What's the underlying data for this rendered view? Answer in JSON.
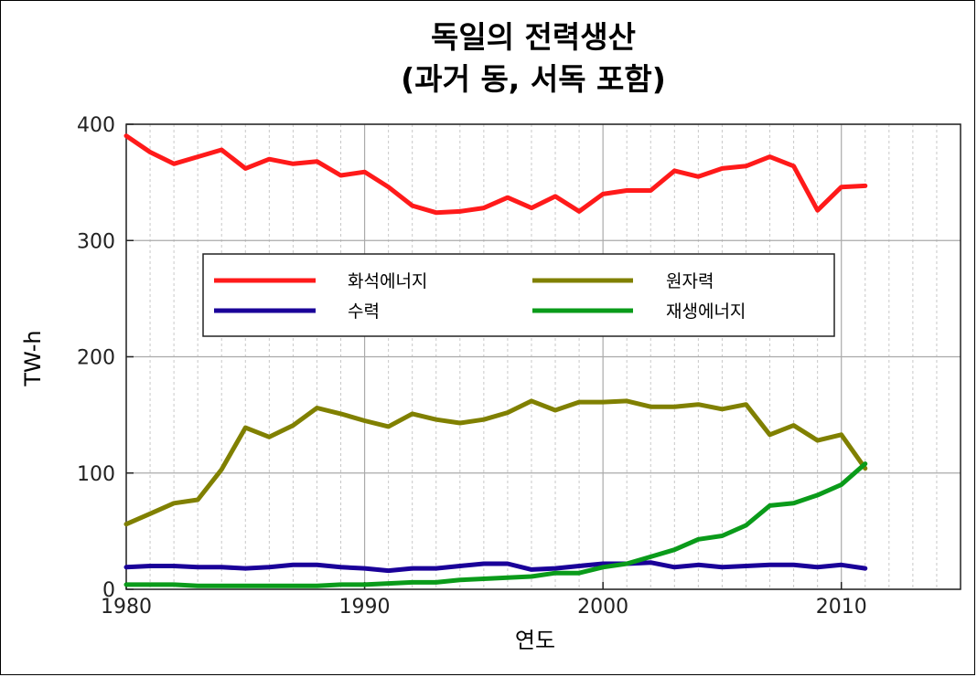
{
  "chart_data": {
    "type": "line",
    "title_line1": "독일의 전력생산",
    "title_line2": "(과거 동, 서독 포함)",
    "xlabel": "연도",
    "ylabel": "TW-h",
    "xlim": [
      1980,
      2015
    ],
    "ylim": [
      0,
      400
    ],
    "xticks": [
      1980,
      1990,
      2000,
      2010
    ],
    "yticks": [
      0,
      100,
      200,
      300,
      400
    ],
    "grid": "dashed minor vertical lines each year; solid major lines",
    "legend_position": "center, inside plot",
    "series": [
      {
        "name": "화석에너지",
        "color": "#ff1a1a",
        "x": [
          1980,
          1981,
          1982,
          1983,
          1984,
          1985,
          1986,
          1987,
          1988,
          1989,
          1990,
          1991,
          1992,
          1993,
          1994,
          1995,
          1996,
          1997,
          1998,
          1999,
          2000,
          2001,
          2002,
          2003,
          2004,
          2005,
          2006,
          2007,
          2008,
          2009,
          2010,
          2011
        ],
        "y": [
          390,
          376,
          366,
          372,
          378,
          362,
          370,
          366,
          368,
          356,
          359,
          346,
          330,
          324,
          325,
          328,
          337,
          328,
          338,
          325,
          340,
          343,
          343,
          360,
          355,
          362,
          364,
          372,
          364,
          326,
          346,
          347
        ]
      },
      {
        "name": "원자력",
        "color": "#808000",
        "x": [
          1980,
          1981,
          1982,
          1983,
          1984,
          1985,
          1986,
          1987,
          1988,
          1989,
          1990,
          1991,
          1992,
          1993,
          1994,
          1995,
          1996,
          1997,
          1998,
          1999,
          2000,
          2001,
          2002,
          2003,
          2004,
          2005,
          2006,
          2007,
          2008,
          2009,
          2010,
          2011
        ],
        "y": [
          56,
          65,
          74,
          77,
          103,
          139,
          131,
          141,
          156,
          151,
          145,
          140,
          151,
          146,
          143,
          146,
          152,
          162,
          154,
          161,
          161,
          162,
          157,
          157,
          159,
          155,
          159,
          133,
          141,
          128,
          133,
          104
        ]
      },
      {
        "name": "수력",
        "color": "#1a0099",
        "x": [
          1980,
          1981,
          1982,
          1983,
          1984,
          1985,
          1986,
          1987,
          1988,
          1989,
          1990,
          1991,
          1992,
          1993,
          1994,
          1995,
          1996,
          1997,
          1998,
          1999,
          2000,
          2001,
          2002,
          2003,
          2004,
          2005,
          2006,
          2007,
          2008,
          2009,
          2010,
          2011
        ],
        "y": [
          19,
          20,
          20,
          19,
          19,
          18,
          19,
          21,
          21,
          19,
          18,
          16,
          18,
          18,
          20,
          22,
          22,
          17,
          18,
          20,
          22,
          22,
          23,
          19,
          21,
          19,
          20,
          21,
          21,
          19,
          21,
          18
        ]
      },
      {
        "name": "재생에너지",
        "color": "#0a9b1a",
        "x": [
          1980,
          1981,
          1982,
          1983,
          1984,
          1985,
          1986,
          1987,
          1988,
          1989,
          1990,
          1991,
          1992,
          1993,
          1994,
          1995,
          1996,
          1997,
          1998,
          1999,
          2000,
          2001,
          2002,
          2003,
          2004,
          2005,
          2006,
          2007,
          2008,
          2009,
          2010,
          2011
        ],
        "y": [
          4,
          4,
          4,
          3,
          3,
          3,
          3,
          3,
          3,
          4,
          4,
          5,
          6,
          6,
          8,
          9,
          10,
          11,
          14,
          14,
          19,
          22,
          28,
          34,
          43,
          46,
          55,
          72,
          74,
          81,
          90,
          108
        ]
      }
    ]
  }
}
